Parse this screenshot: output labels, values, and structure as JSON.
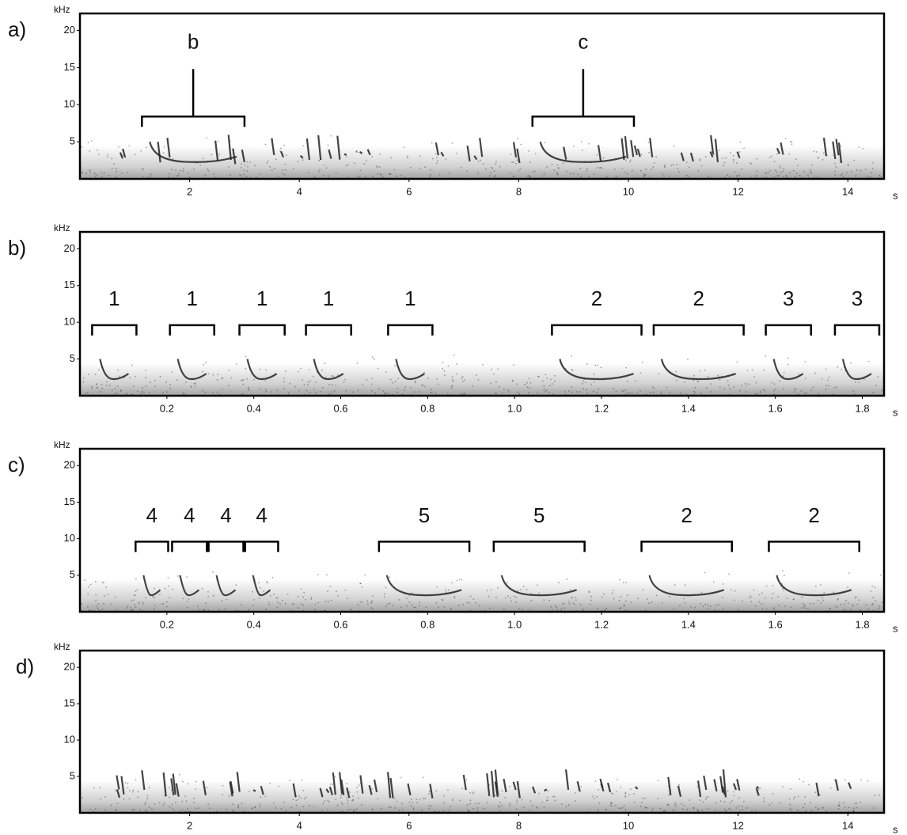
{
  "chart_data": [
    {
      "type": "spectrogram",
      "panel_label": "a)",
      "y_unit": "kHz",
      "x_unit": "s",
      "xlim": [
        0,
        14.66
      ],
      "xticks": [
        2,
        4,
        6,
        8,
        10,
        12,
        14
      ],
      "ylim": [
        0,
        22.3
      ],
      "yticks": [
        5,
        10,
        15,
        20
      ],
      "annotations": [
        {
          "label": "b",
          "x": [
            1.13,
            3.0
          ]
        },
        {
          "label": "c",
          "x": [
            8.25,
            10.1
          ]
        }
      ]
    },
    {
      "type": "spectrogram",
      "panel_label": "b)",
      "y_unit": "kHz",
      "x_unit": "s",
      "xlim": [
        0,
        1.85
      ],
      "xticks": [
        0.2,
        0.4,
        0.6,
        0.8,
        {
          "value": 1,
          "label": "1.0"
        },
        1.2,
        1.4,
        1.6,
        1.8
      ],
      "ylim": [
        0,
        22.3
      ],
      "yticks": [
        5,
        10,
        15,
        20
      ],
      "annotations": [
        {
          "label": "1",
          "x": [
            0.028,
            0.13
          ]
        },
        {
          "label": "1",
          "x": [
            0.207,
            0.309
          ]
        },
        {
          "label": "1",
          "x": [
            0.367,
            0.471
          ]
        },
        {
          "label": "1",
          "x": [
            0.52,
            0.624
          ]
        },
        {
          "label": "1",
          "x": [
            0.709,
            0.811
          ]
        },
        {
          "label": "2",
          "x": [
            1.086,
            1.292
          ]
        },
        {
          "label": "2",
          "x": [
            1.32,
            1.527
          ]
        },
        {
          "label": "3",
          "x": [
            1.578,
            1.682
          ]
        },
        {
          "label": "3",
          "x": [
            1.737,
            1.839
          ]
        }
      ]
    },
    {
      "type": "spectrogram",
      "panel_label": "c)",
      "y_unit": "kHz",
      "x_unit": "s",
      "xlim": [
        0,
        1.85
      ],
      "xticks": [
        0.2,
        0.4,
        0.6,
        0.8,
        {
          "value": 1,
          "label": "1.0"
        },
        1.2,
        1.4,
        1.6,
        1.8
      ],
      "ylim": [
        0,
        22.3
      ],
      "yticks": [
        5,
        10,
        15,
        20
      ],
      "annotations": [
        {
          "label": "4",
          "x": [
            0.128,
            0.203
          ]
        },
        {
          "label": "4",
          "x": [
            0.212,
            0.292
          ]
        },
        {
          "label": "4",
          "x": [
            0.296,
            0.376
          ]
        },
        {
          "label": "4",
          "x": [
            0.38,
            0.456
          ]
        },
        {
          "label": "5",
          "x": [
            0.688,
            0.896
          ]
        },
        {
          "label": "5",
          "x": [
            0.952,
            1.161
          ]
        },
        {
          "label": "2",
          "x": [
            1.292,
            1.5
          ]
        },
        {
          "label": "2",
          "x": [
            1.585,
            1.793
          ]
        }
      ]
    },
    {
      "type": "spectrogram",
      "panel_label": "d)",
      "y_unit": "kHz",
      "x_unit": "s",
      "xlim": [
        0,
        14.66
      ],
      "xticks": [
        2,
        4,
        6,
        8,
        10,
        12,
        14
      ],
      "ylim": [
        0,
        22.3
      ],
      "yticks": [
        5,
        10,
        15,
        20
      ],
      "annotations": []
    }
  ]
}
